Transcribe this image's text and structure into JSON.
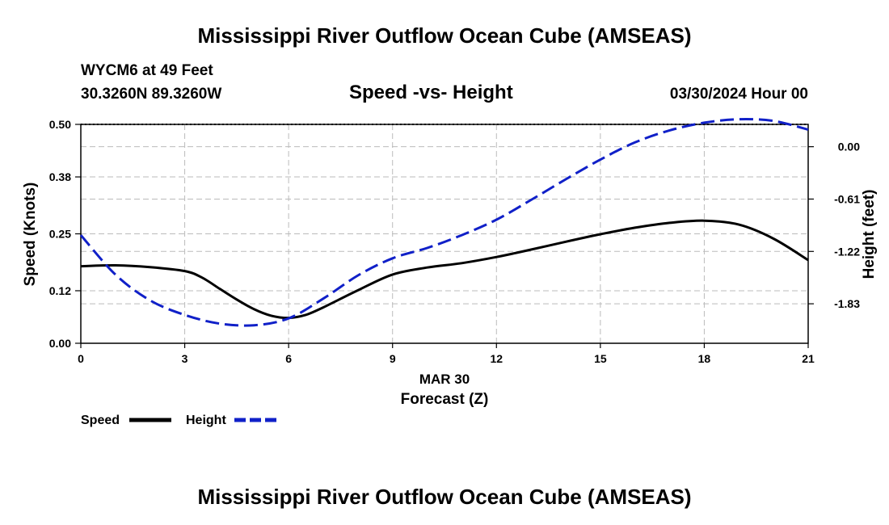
{
  "page": {
    "title_top": "Mississippi River Outflow Ocean Cube (AMSEAS)",
    "title_bottom": "Mississippi River Outflow Ocean Cube (AMSEAS)",
    "station": "WYCM6 at 49 Feet",
    "coords": "30.3260N  89.3260W",
    "subtitle": "Speed -vs- Height",
    "datetime": "03/30/2024 Hour 00"
  },
  "colors": {
    "speed": "#000000",
    "height": "#1020c8",
    "grid": "#bbbbbb"
  },
  "chart_data": {
    "type": "line",
    "title": "Speed -vs- Height",
    "xlabel": "Forecast (Z)",
    "xlabel_date": "MAR 30",
    "xlim": [
      0,
      21
    ],
    "x_ticks": [
      "0",
      "3",
      "6",
      "9",
      "12",
      "15",
      "18",
      "21"
    ],
    "ylabel_left": "Speed (Knots)",
    "ylim_left": [
      0,
      0.5
    ],
    "y_ticks_left": [
      "0.00",
      "0.12",
      "0.25",
      "0.38",
      "0.50"
    ],
    "ylabel_right": "Height (feet)",
    "ylim_right": [
      -2.29,
      0.26
    ],
    "y_ticks_right": [
      "-1.83",
      "-1.22",
      "-0.61",
      "0.00"
    ],
    "y_ticks_right_values": [
      -1.83,
      -1.22,
      -0.61,
      0.0
    ],
    "grid": true,
    "legend_position": "bottom-left",
    "series": [
      {
        "name": "Speed",
        "axis": "left",
        "style": "solid",
        "x": [
          0,
          1,
          2,
          3,
          3.5,
          4,
          4.5,
          5,
          5.5,
          6,
          6.5,
          7,
          8,
          9,
          10,
          11,
          12,
          13,
          14,
          15,
          16,
          17,
          18,
          19,
          20,
          21
        ],
        "values": [
          0.176,
          0.178,
          0.174,
          0.165,
          0.15,
          0.125,
          0.1,
          0.078,
          0.063,
          0.058,
          0.065,
          0.082,
          0.121,
          0.157,
          0.173,
          0.183,
          0.197,
          0.214,
          0.232,
          0.249,
          0.264,
          0.275,
          0.28,
          0.271,
          0.239,
          0.19
        ]
      },
      {
        "name": "Height",
        "axis": "right",
        "style": "dashed",
        "x": [
          0,
          1,
          2,
          3,
          4,
          5,
          6,
          7,
          8,
          9,
          10,
          11,
          12,
          13,
          14,
          15,
          16,
          17,
          18,
          19,
          20,
          21
        ],
        "values": [
          -1.03,
          -1.49,
          -1.79,
          -1.96,
          -2.06,
          -2.08,
          -2.0,
          -1.77,
          -1.5,
          -1.3,
          -1.18,
          -1.03,
          -0.85,
          -0.62,
          -0.38,
          -0.15,
          0.05,
          0.19,
          0.28,
          0.32,
          0.3,
          0.2
        ]
      }
    ]
  }
}
